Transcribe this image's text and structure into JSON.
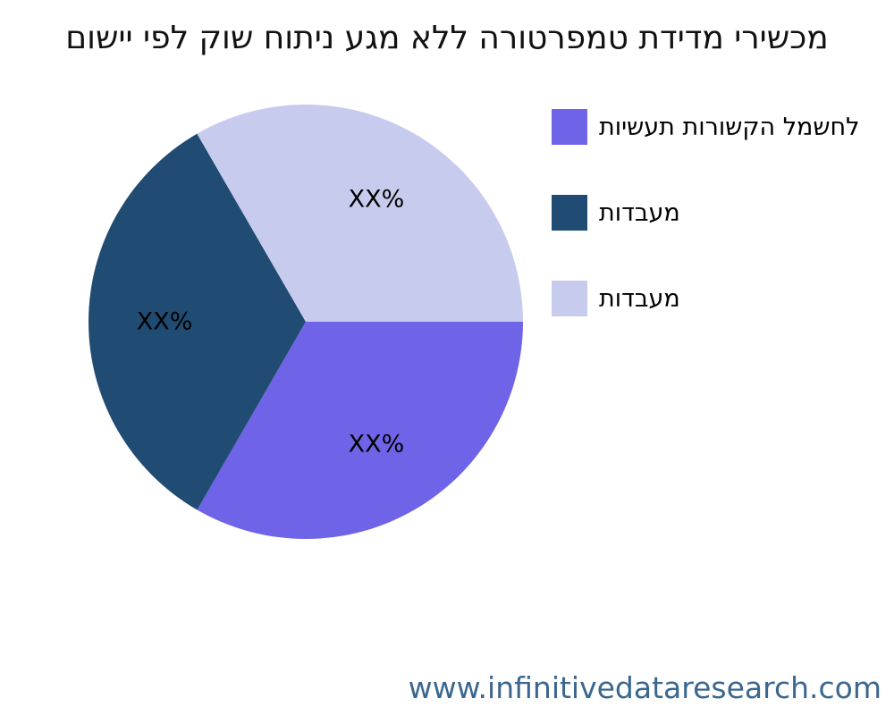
{
  "chart_data": {
    "type": "pie",
    "title": "מכשירי מדידת טמפרטורה ללא מגע ניתוח שוק לפי יישום",
    "slices": [
      {
        "label": "לחשמל הקשורות תעשיות",
        "value": 33.33,
        "value_label": "XX%",
        "color": "#6F63E8"
      },
      {
        "label": "מעבדות",
        "value": 33.33,
        "value_label": "XX%",
        "color": "#204C73"
      },
      {
        "label": "מעבדות",
        "value": 33.34,
        "value_label": "XX%",
        "color": "#C7CBEE"
      }
    ],
    "start_angle_deg": 0,
    "direction": "clockwise",
    "legend_position": "upper-right",
    "percent_display": "placeholder"
  },
  "footer": {
    "website": "www.infinitivedataresearch.com"
  },
  "colors": {
    "background": "#ffffff",
    "title_text": "#111111",
    "percent_text": "#000000",
    "source_text": "#3B678F"
  }
}
